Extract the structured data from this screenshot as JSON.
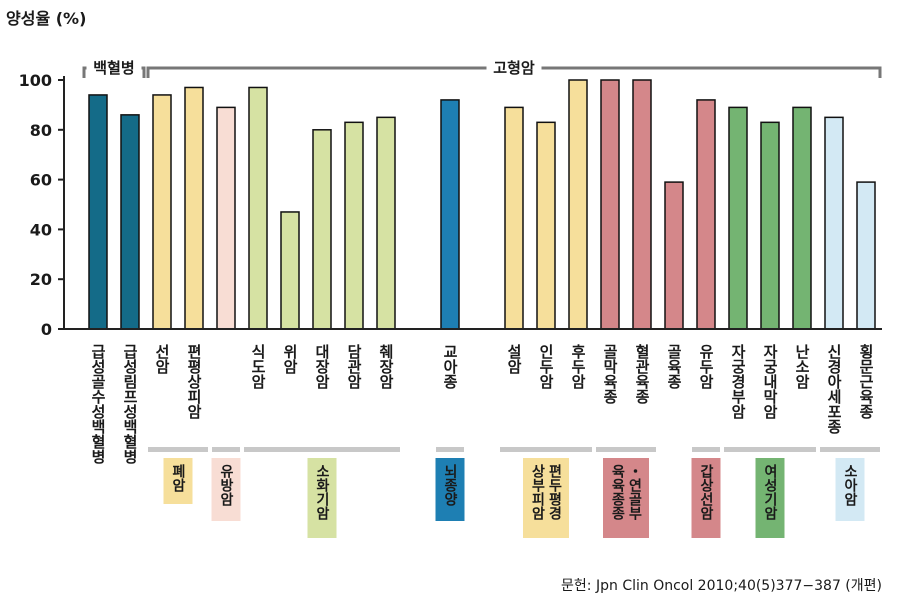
{
  "chart_data": {
    "type": "bar",
    "ylabel": "양성율 (%)",
    "ylim": [
      0,
      100
    ],
    "yticks": [
      "0",
      "20",
      "40",
      "60",
      "80",
      "100"
    ],
    "grid": false,
    "brackets": [
      {
        "label": "백혈병",
        "from": 0,
        "to": 1
      },
      {
        "label": "고형암",
        "from": 2,
        "to": 24
      }
    ],
    "categories": [
      "급성골수성백혈병",
      "급성림프성백혈병",
      "선암",
      "편평상피암",
      "",
      "식도암",
      "위암",
      "대장암",
      "담관암",
      "췌장암",
      "",
      "교아종",
      "",
      "설암",
      "인두암",
      "후두암",
      "골막육종",
      "혈관육종",
      "골육종",
      "유두암",
      "자궁경부암",
      "자궁내막암",
      "난소암",
      "신경아세포종",
      "횡문근육종"
    ],
    "values": [
      94,
      86,
      94,
      97,
      89,
      97,
      47,
      80,
      83,
      85,
      null,
      92,
      null,
      89,
      83,
      100,
      100,
      100,
      59,
      92,
      89,
      83,
      89,
      85,
      59
    ],
    "colors": [
      "#146b88",
      "#146b88",
      "#f6df9b",
      "#f6df9b",
      "#f8ddd4",
      "#d6e2a3",
      "#d6e2a3",
      "#d6e2a3",
      "#d6e2a3",
      "#d6e2a3",
      null,
      "#1e7fb3",
      null,
      "#f6df9b",
      "#f6df9b",
      "#f6df9b",
      "#d4878a",
      "#d4878a",
      "#d4878a",
      "#d4878a",
      "#74b472",
      "#74b472",
      "#74b472",
      "#d3e9f4",
      "#d3e9f4"
    ],
    "groups": [
      {
        "label": "폐암",
        "from": 2,
        "to": 3,
        "color": "#f6df9b"
      },
      {
        "label": "유방암",
        "from": 4,
        "to": 4,
        "color": "#f8ddd4"
      },
      {
        "label": "소화기암",
        "from": 5,
        "to": 9,
        "color": "#d6e2a3"
      },
      {
        "label": "뇌종양",
        "from": 11,
        "to": 11,
        "color": "#1e7fb3"
      },
      {
        "label": "편두평경상부피암",
        "from": 13,
        "to": 15,
        "color": "#f6df9b"
      },
      {
        "label": "・연골부육육종종",
        "from": 16,
        "to": 17,
        "color": "#d4878a"
      },
      {
        "label": "갑상선암",
        "from": 19,
        "to": 19,
        "color": "#d4878a"
      },
      {
        "label": "여성기암",
        "from": 20,
        "to": 22,
        "color": "#74b472"
      },
      {
        "label": "소아암",
        "from": 23,
        "to": 24,
        "color": "#d3e9f4"
      }
    ],
    "source": "문헌: Jpn Clin Oncol 2010;40(5)377−387 (개편)"
  }
}
